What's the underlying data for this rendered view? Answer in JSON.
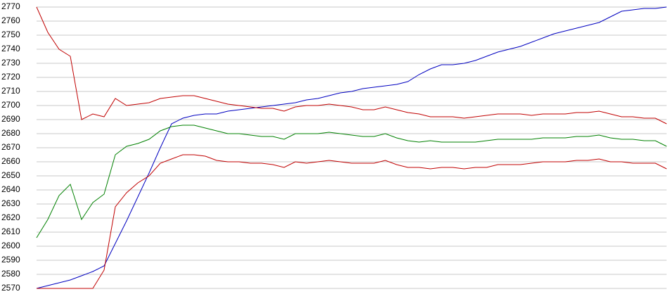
{
  "chart_data": {
    "type": "line",
    "categories": [
      null,
      null,
      null,
      null,
      null,
      null,
      null,
      null,
      null,
      null,
      null,
      null,
      null,
      null,
      null,
      null,
      null,
      null,
      null,
      null,
      null,
      null,
      null,
      null,
      null,
      null,
      null,
      null,
      null,
      null,
      null,
      null,
      null,
      null,
      null,
      null,
      null,
      null,
      null,
      null,
      null,
      null,
      null,
      null,
      null,
      null,
      null,
      null,
      null,
      null,
      null,
      null,
      null,
      null,
      null,
      null,
      null
    ],
    "series": [
      {
        "color": "#0000c0",
        "values": [
          2570,
          2572,
          2574,
          2576,
          2579,
          2582,
          2586,
          2602,
          2618,
          2635,
          2652,
          2670,
          2687,
          2691,
          2693,
          2694,
          2694,
          2696,
          2697,
          2698,
          2699,
          2700,
          2701,
          2702,
          2704,
          2705,
          2707,
          2709,
          2710,
          2712,
          2713,
          2714,
          2715,
          2717,
          2722,
          2726,
          2729,
          2729,
          2730,
          2732,
          2735,
          2738,
          2740,
          2742,
          2745,
          2748,
          2751,
          2753,
          2755,
          2757,
          2759,
          2763,
          2767,
          2768,
          2769,
          2769,
          2770
        ]
      },
      {
        "color": "#c00000",
        "values": [
          2770,
          2752,
          2740,
          2735,
          2690,
          2694,
          2692,
          2705,
          2700,
          2701,
          2702,
          2705,
          2706,
          2707,
          2707,
          2705,
          2703,
          2701,
          2700,
          2699,
          2698,
          2698,
          2696,
          2699,
          2700,
          2700,
          2701,
          2700,
          2699,
          2697,
          2697,
          2699,
          2697,
          2695,
          2694,
          2692,
          2692,
          2692,
          2691,
          2692,
          2693,
          2694,
          2694,
          2694,
          2693,
          2694,
          2694,
          2694,
          2695,
          2695,
          2696,
          2694,
          2692,
          2692,
          2691,
          2691,
          2687
        ]
      },
      {
        "color": "#008000",
        "values": [
          2606,
          2619,
          2636,
          2644,
          2619,
          2631,
          2637,
          2665,
          2671,
          2673,
          2676,
          2682,
          2685,
          2686,
          2686,
          2684,
          2682,
          2680,
          2680,
          2679,
          2678,
          2678,
          2676,
          2680,
          2680,
          2680,
          2681,
          2680,
          2679,
          2678,
          2678,
          2680,
          2677,
          2675,
          2674,
          2675,
          2674,
          2674,
          2674,
          2674,
          2675,
          2676,
          2676,
          2676,
          2676,
          2677,
          2677,
          2677,
          2678,
          2678,
          2679,
          2677,
          2676,
          2676,
          2675,
          2675,
          2671
        ]
      },
      {
        "color": "#c00000",
        "values": [
          2570,
          2570,
          2570,
          2570,
          2570,
          2570,
          2583,
          2628,
          2638,
          2645,
          2650,
          2659,
          2662,
          2665,
          2665,
          2664,
          2661,
          2660,
          2660,
          2659,
          2659,
          2658,
          2656,
          2660,
          2659,
          2660,
          2661,
          2660,
          2659,
          2659,
          2659,
          2661,
          2658,
          2656,
          2656,
          2655,
          2656,
          2656,
          2655,
          2656,
          2656,
          2658,
          2658,
          2658,
          2659,
          2660,
          2660,
          2660,
          2661,
          2661,
          2662,
          2660,
          2660,
          2659,
          2659,
          2659,
          2655
        ]
      }
    ],
    "ylim": [
      2570,
      2770
    ],
    "yticks": [
      2570,
      2580,
      2590,
      2600,
      2610,
      2620,
      2630,
      2640,
      2650,
      2660,
      2670,
      2680,
      2690,
      2700,
      2710,
      2720,
      2730,
      2740,
      2750,
      2760,
      2770
    ],
    "grid": true
  }
}
